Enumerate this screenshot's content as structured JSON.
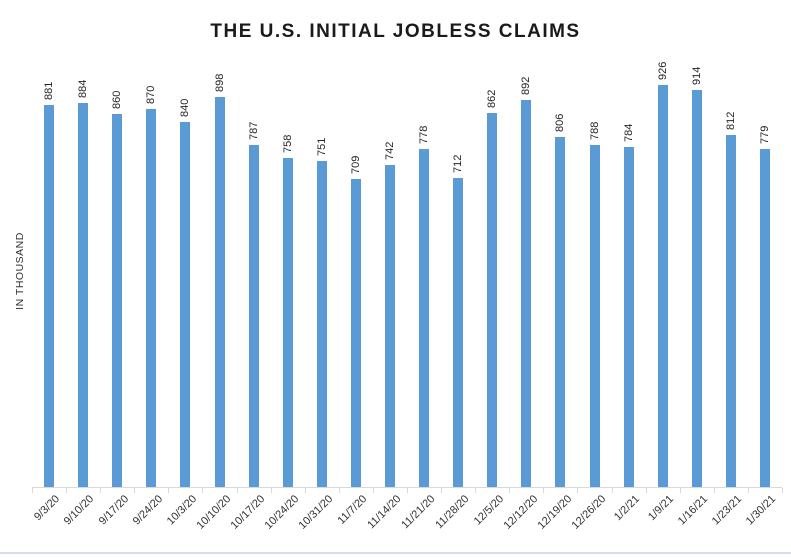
{
  "chart_data": {
    "type": "bar",
    "title": "THE U.S. INITIAL JOBLESS CLAIMS",
    "ylabel": "IN THOUSAND",
    "xlabel": "",
    "categories": [
      "9/3/20",
      "9/10/20",
      "9/17/20",
      "9/24/20",
      "10/3/20",
      "10/10/20",
      "10/17/20",
      "10/24/20",
      "10/31/20",
      "11/7/20",
      "11/14/20",
      "11/21/20",
      "11/28/20",
      "12/5/20",
      "12/12/20",
      "12/19/20",
      "12/26/20",
      "1/2/21",
      "1/9/21",
      "1/16/21",
      "1/23/21",
      "1/30/21"
    ],
    "values": [
      881,
      884,
      860,
      870,
      840,
      898,
      787,
      758,
      751,
      709,
      742,
      778,
      712,
      862,
      892,
      806,
      788,
      784,
      926,
      914,
      812,
      779
    ],
    "data_labels_shown": true,
    "data_label_rotation_deg": 90,
    "category_label_rotation_deg": 45,
    "ylim": [
      0,
      1000
    ],
    "grid": false,
    "legend": false,
    "colors": {
      "bar": "#5B9BD5",
      "axis": "#D9D9D9",
      "value_label": "#262626",
      "category_label": "#333333",
      "title": "#1A1A1A",
      "divider": "#D8DEE6"
    }
  }
}
